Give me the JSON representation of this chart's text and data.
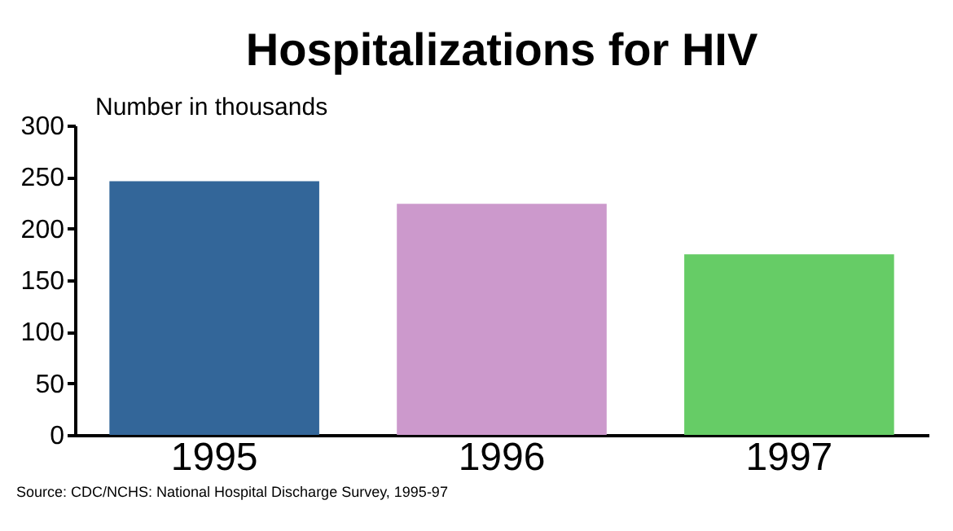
{
  "chart_data": {
    "type": "bar",
    "title": "Hospitalizations for HIV",
    "ylabel": "Number in thousands",
    "categories": [
      "1995",
      "1996",
      "1997"
    ],
    "values": [
      246,
      224,
      175
    ],
    "colors": [
      "#336699",
      "#cc99cc",
      "#66cc66"
    ],
    "ylim": [
      0,
      300
    ],
    "yticks": [
      0,
      50,
      100,
      150,
      200,
      250,
      300
    ],
    "grid": false,
    "annotations": [
      "Source:  CDC/NCHS:  National Hospital Discharge Survey, 1995-97"
    ]
  }
}
